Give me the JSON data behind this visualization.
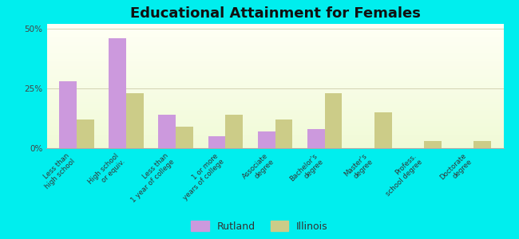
{
  "title": "Educational Attainment for Females",
  "categories": [
    "Less than\nhigh school",
    "High school\nor equiv.",
    "Less than\n1 year of college",
    "1 or more\nyears of college",
    "Associate\ndegree",
    "Bachelor's\ndegree",
    "Master's\ndegree",
    "Profess.\nschool degree",
    "Doctorate\ndegree"
  ],
  "rutland": [
    28,
    46,
    14,
    5,
    7,
    8,
    0,
    0,
    0
  ],
  "illinois": [
    12,
    23,
    9,
    14,
    12,
    23,
    15,
    3,
    3
  ],
  "rutland_color": "#cc99dd",
  "illinois_color": "#cccc88",
  "bg_color": "#00eeee",
  "ylim": [
    0,
    52
  ],
  "yticks": [
    0,
    25,
    50
  ],
  "ytick_labels": [
    "0%",
    "25%",
    "50%"
  ],
  "title_fontsize": 13,
  "bar_width": 0.35,
  "legend_labels": [
    "Rutland",
    "Illinois"
  ]
}
